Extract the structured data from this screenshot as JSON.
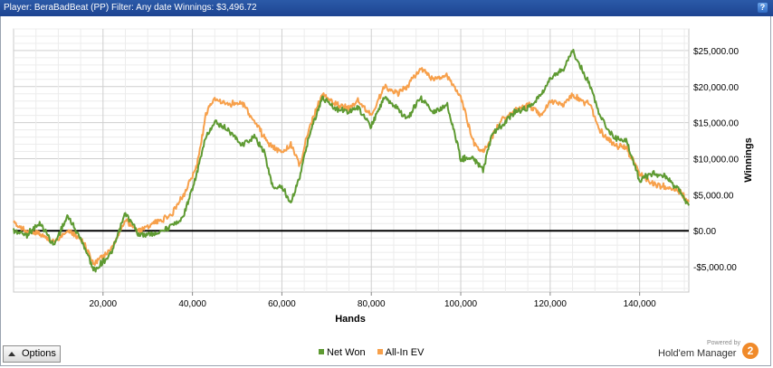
{
  "header": {
    "title": "Player: BeraBadBeat (PP) Filter: Any date Winnings: $3,496.72",
    "help_label": "?"
  },
  "options": {
    "label": "Options"
  },
  "branding": {
    "powered_by": "Powered by",
    "product": "Hold'em Manager",
    "logo_text": "2"
  },
  "chart_data": {
    "type": "line",
    "xlabel": "Hands",
    "ylabel": "Winnings",
    "xlim": [
      0,
      151000
    ],
    "ylim": [
      -8500,
      28000
    ],
    "x_ticks": [
      20000,
      40000,
      60000,
      80000,
      100000,
      120000,
      140000
    ],
    "x_tick_labels": [
      "20,000",
      "40,000",
      "60,000",
      "80,000",
      "100,000",
      "120,000",
      "140,000"
    ],
    "y_ticks": [
      25000,
      20000,
      15000,
      10000,
      5000,
      0,
      -5000
    ],
    "y_tick_labels": [
      "$25,000.00",
      "$20,000.00",
      "$15,000.00",
      "$10,000.00",
      "$5,000.00",
      "$0.00",
      "-$5,000.00"
    ],
    "grid": true,
    "legend_position": "bottom",
    "series": [
      {
        "name": "Net Won",
        "color": "#5e9a32",
        "x": [
          0,
          3000,
          6000,
          9000,
          12000,
          15000,
          18000,
          22000,
          25000,
          28000,
          31000,
          35000,
          38000,
          41000,
          43000,
          45000,
          48000,
          51000,
          54000,
          56000,
          58000,
          60000,
          62000,
          64000,
          66000,
          69000,
          72000,
          75000,
          77000,
          80000,
          83000,
          86000,
          88000,
          91000,
          94000,
          97000,
          100000,
          103000,
          105000,
          107000,
          109000,
          112000,
          115000,
          118000,
          120000,
          123000,
          125000,
          127000,
          129000,
          131000,
          134000,
          137000,
          140000,
          143000,
          146000,
          149000,
          151000
        ],
        "y": [
          0,
          -500,
          1000,
          -2000,
          2000,
          -1000,
          -5500,
          -3000,
          2500,
          -500,
          -500,
          500,
          2000,
          8000,
          13000,
          15000,
          14000,
          12000,
          13000,
          11000,
          6000,
          6000,
          4000,
          7500,
          13000,
          18500,
          17000,
          16500,
          17000,
          14500,
          18500,
          17000,
          15500,
          18500,
          16500,
          17500,
          10000,
          10000,
          8500,
          13500,
          14500,
          16500,
          17000,
          19000,
          21000,
          22500,
          25000,
          22500,
          20000,
          16000,
          13000,
          12500,
          7000,
          8000,
          7500,
          5500,
          3500
        ]
      },
      {
        "name": "All-In EV",
        "color": "#f7a04b",
        "x": [
          0,
          3000,
          6000,
          9000,
          12000,
          15000,
          18000,
          22000,
          25000,
          28000,
          31000,
          35000,
          38000,
          41000,
          43000,
          45000,
          48000,
          51000,
          54000,
          56000,
          58000,
          60000,
          62000,
          64000,
          66000,
          69000,
          72000,
          75000,
          77000,
          80000,
          83000,
          86000,
          88000,
          91000,
          94000,
          97000,
          100000,
          103000,
          105000,
          107000,
          109000,
          112000,
          115000,
          118000,
          120000,
          123000,
          125000,
          127000,
          129000,
          131000,
          134000,
          137000,
          140000,
          143000,
          146000,
          149000,
          151000
        ],
        "y": [
          1000,
          0,
          -500,
          -1500,
          0,
          -1000,
          -4500,
          -2500,
          1500,
          0,
          1000,
          2000,
          5000,
          9000,
          16000,
          18500,
          17500,
          18000,
          15000,
          13000,
          11500,
          11000,
          12000,
          9000,
          14000,
          19000,
          17500,
          17000,
          18000,
          16000,
          20000,
          19000,
          20000,
          22500,
          21000,
          21500,
          18500,
          12000,
          11000,
          13000,
          15500,
          16500,
          17500,
          16000,
          18000,
          17500,
          19000,
          18000,
          17500,
          14000,
          12000,
          11500,
          8000,
          6500,
          6000,
          5500,
          4000
        ]
      }
    ]
  }
}
